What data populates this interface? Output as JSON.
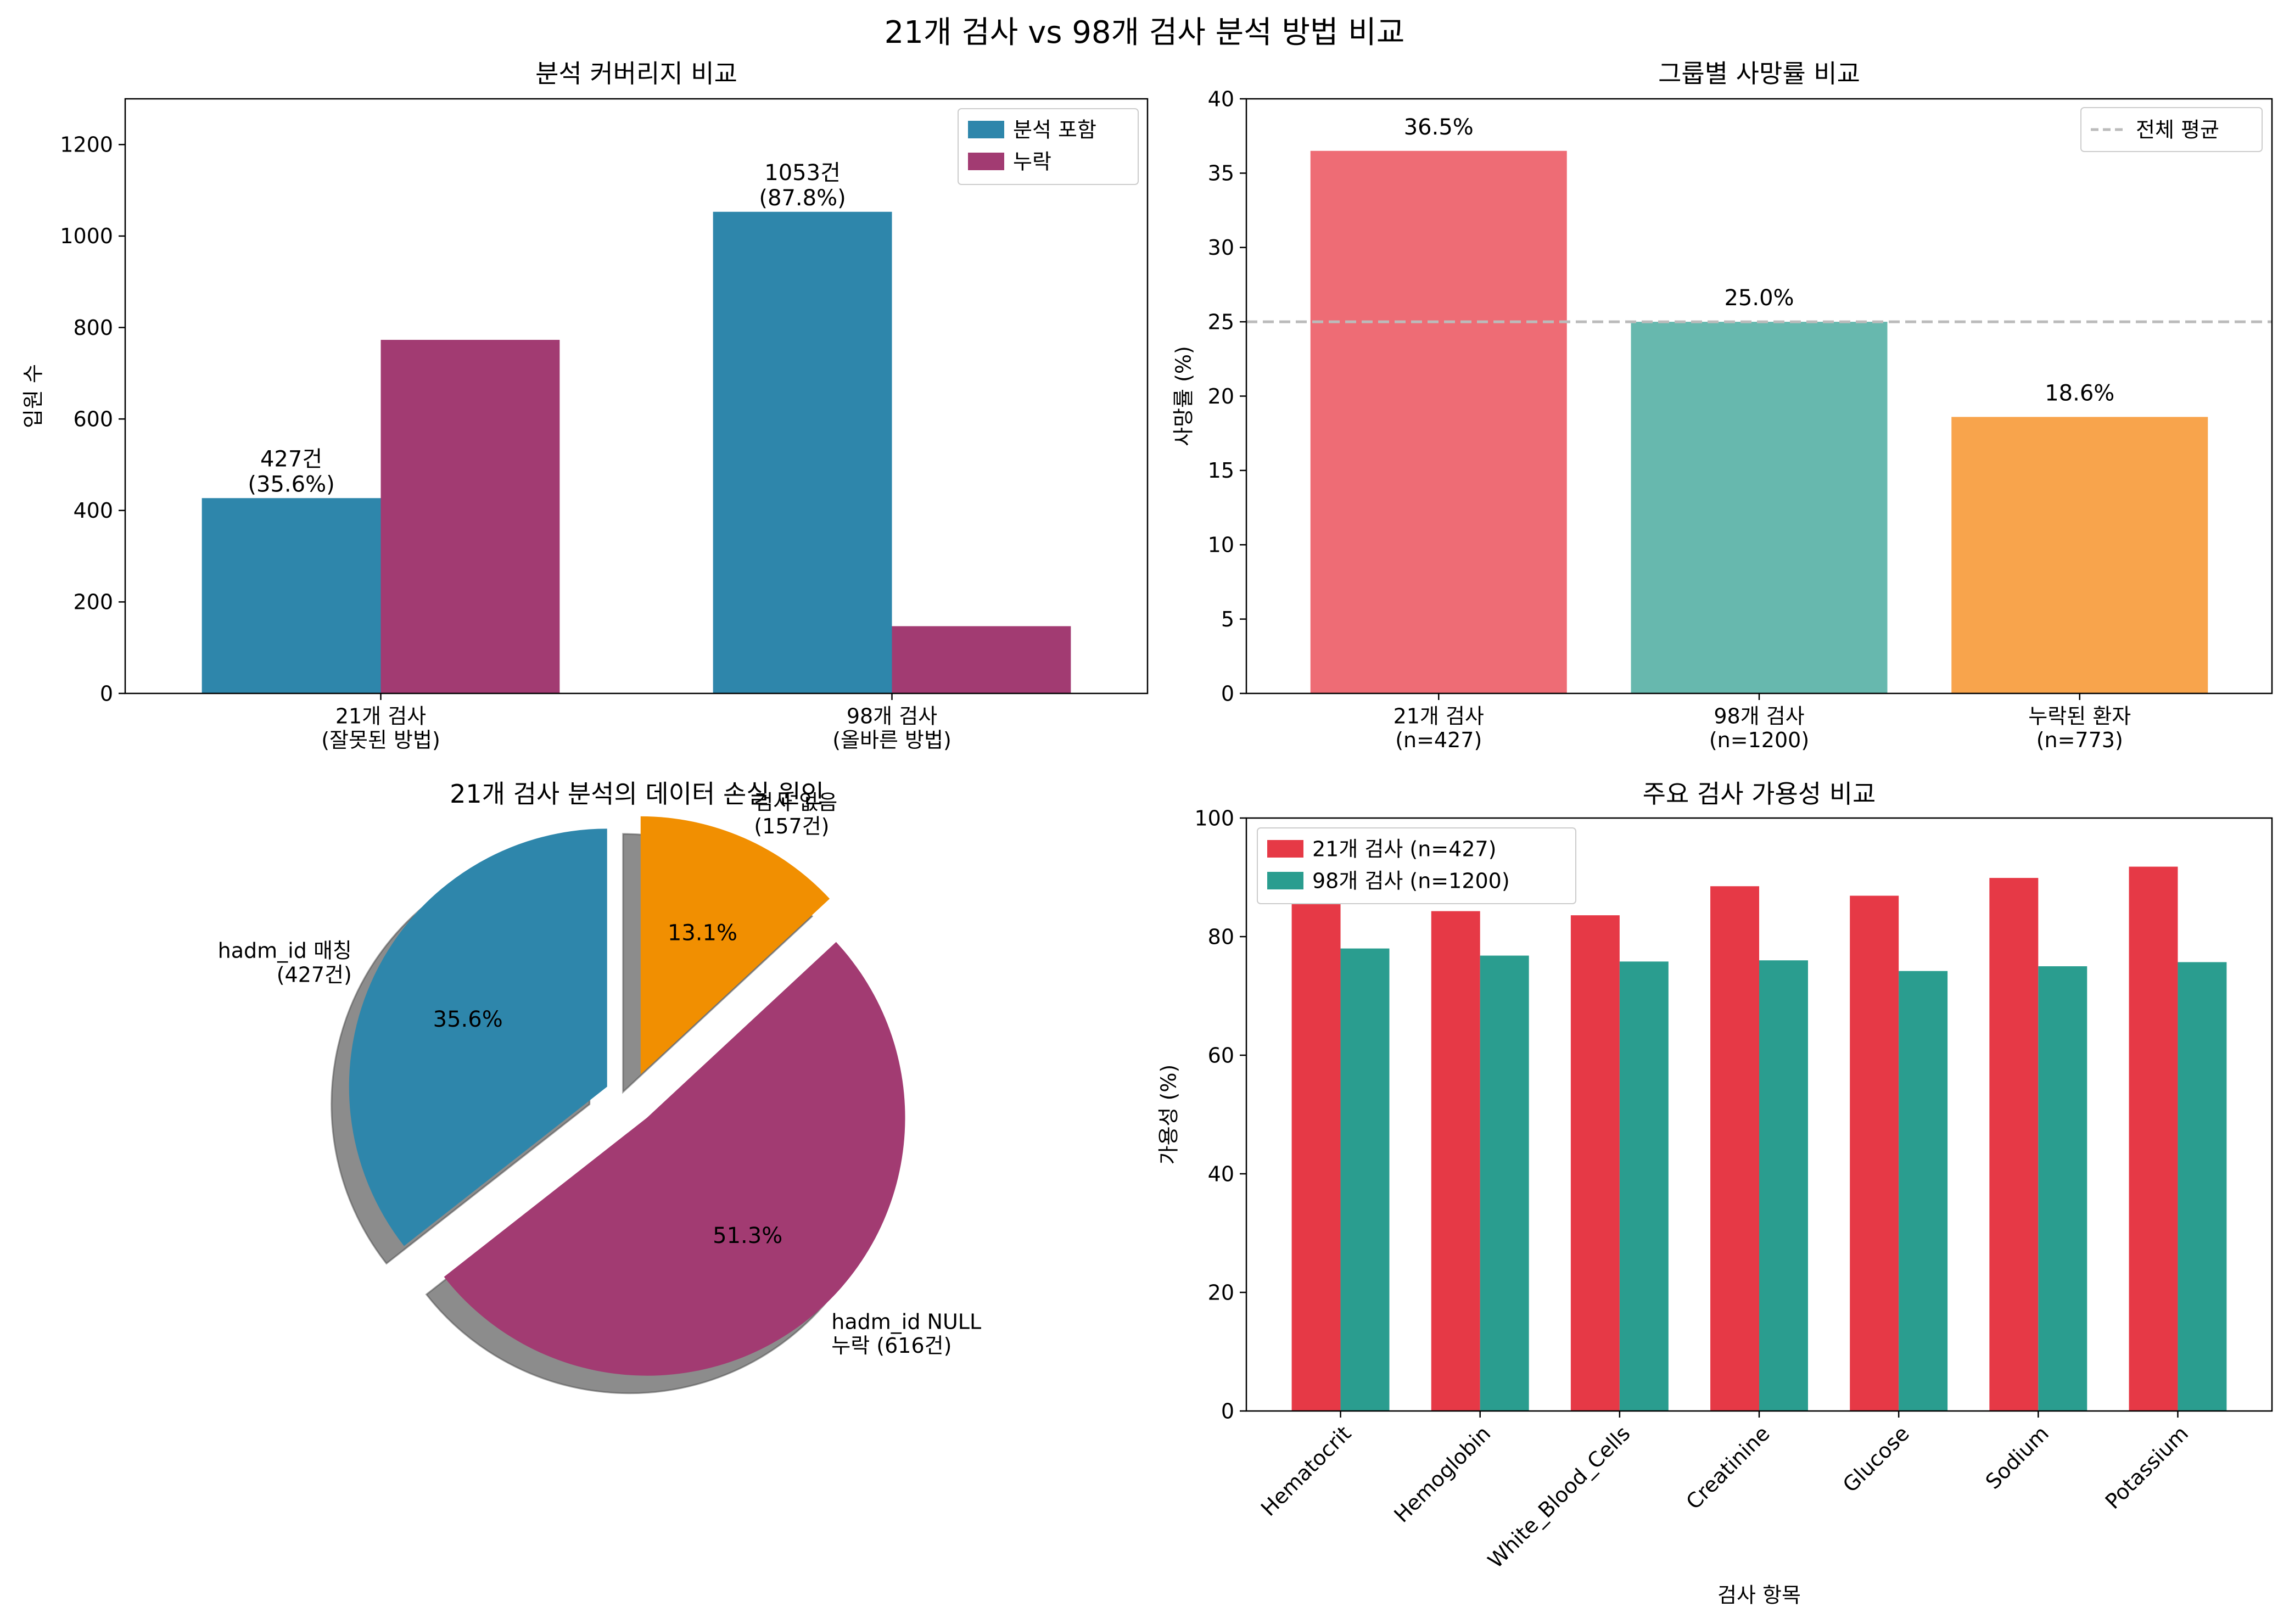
{
  "figure": {
    "title": "21개 검사 vs 98개 검사 분석 방법 비교"
  },
  "chart_data": [
    {
      "type": "bar",
      "title": "분석 커버리지 비교",
      "ylabel": "입원 수",
      "xlabel": "",
      "categories": [
        "21개 검사\n(잘못된 방법)",
        "98개 검사\n(올바른 방법)"
      ],
      "series": [
        {
          "name": "분석 포함",
          "values": [
            427,
            1053
          ],
          "color": "#2E86AB",
          "labels": [
            "427건\n(35.6%)",
            "1053건\n(87.8%)"
          ]
        },
        {
          "name": "누락",
          "values": [
            773,
            147
          ],
          "color": "#A23B72"
        }
      ],
      "ylim": [
        0,
        1300
      ],
      "yticks": [
        0,
        200,
        400,
        600,
        800,
        1000,
        1200
      ],
      "legend": "top-right"
    },
    {
      "type": "bar",
      "title": "그룹별 사망률 비교",
      "ylabel": "사망률 (%)",
      "xlabel": "",
      "categories": [
        "21개 검사\n(n=427)",
        "98개 검사\n(n=1200)",
        "누락된 환자\n(n=773)"
      ],
      "values": [
        36.5,
        25.0,
        18.6
      ],
      "colors": [
        "#EE6C75",
        "#67B8AE",
        "#F8A44C"
      ],
      "labels": [
        "36.5%",
        "25.0%",
        "18.6%"
      ],
      "reference_line": {
        "name": "전체 평균",
        "value": 25.0,
        "color": "#BBBBBB"
      },
      "ylim": [
        0,
        40
      ],
      "yticks": [
        0,
        5,
        10,
        15,
        20,
        25,
        30,
        35,
        40
      ],
      "legend": "top-right"
    },
    {
      "type": "pie",
      "title": "21개 검사 분석의 데이터 손실 원인",
      "slices": [
        {
          "label": "hadm_id 매칭\n(427건)",
          "value": 427,
          "pct": "35.6%",
          "color": "#2E86AB",
          "explode": 0.1
        },
        {
          "label": "hadm_id NULL\n누락 (616건)",
          "value": 616,
          "pct": "51.3%",
          "color": "#A23B72",
          "explode": 0.1
        },
        {
          "label": "검사 없음\n(157건)",
          "value": 157,
          "pct": "13.1%",
          "color": "#F18F01",
          "explode": 0.1
        }
      ],
      "startangle": 90,
      "shadow": true
    },
    {
      "type": "bar",
      "title": "주요 검사 가용성 비교",
      "ylabel": "가용성 (%)",
      "xlabel": "검사 항목",
      "categories": [
        "Hematocrit",
        "Hemoglobin",
        "White_Blood_Cells",
        "Creatinine",
        "Glucose",
        "Sodium",
        "Potassium"
      ],
      "series": [
        {
          "name": "21개 검사 (n=427)",
          "values": [
            89.5,
            84.3,
            83.6,
            88.5,
            86.9,
            89.9,
            91.8
          ],
          "color": "#E63946"
        },
        {
          "name": "98개 검사 (n=1200)",
          "values": [
            78.0,
            76.8,
            75.8,
            76.0,
            74.2,
            75.0,
            75.7
          ],
          "color": "#2A9D8F"
        }
      ],
      "ylim": [
        0,
        100
      ],
      "yticks": [
        0,
        20,
        40,
        60,
        80,
        100
      ],
      "legend": "top-left"
    }
  ]
}
